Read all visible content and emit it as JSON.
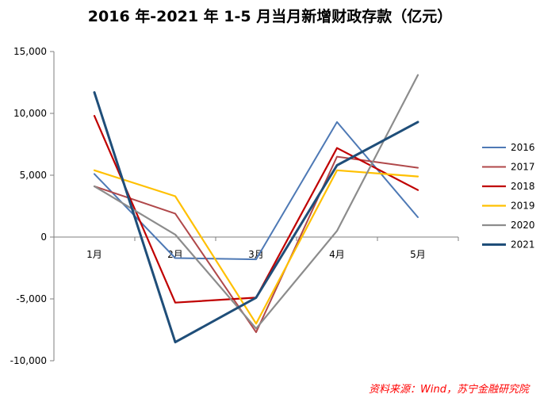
{
  "chart_data": {
    "type": "line",
    "title": "2016 年-2021 年 1-5 月当月新增财政存款（亿元）",
    "categories": [
      "1月",
      "2月",
      "3月",
      "4月",
      "5月"
    ],
    "ylim": [
      -10000,
      15000
    ],
    "yticks": [
      15000,
      10000,
      5000,
      0,
      -5000,
      -10000
    ],
    "ytick_labels": [
      "15,000",
      "10,000",
      "5,000",
      "0",
      "-5,000",
      "-10,000"
    ],
    "grid": false,
    "legend_position": "right",
    "series": [
      {
        "name": "2016",
        "color": "#4e79b5",
        "width": 2.0,
        "values": [
          5100,
          -1700,
          -1800,
          9300,
          1600
        ]
      },
      {
        "name": "2017",
        "color": "#b0484a",
        "width": 2.0,
        "values": [
          4100,
          1900,
          -7700,
          6500,
          5600
        ]
      },
      {
        "name": "2018",
        "color": "#c00000",
        "width": 2.2,
        "values": [
          9800,
          -5300,
          -4900,
          7200,
          3800
        ]
      },
      {
        "name": "2019",
        "color": "#ffc000",
        "width": 2.2,
        "values": [
          5400,
          3300,
          -7000,
          5400,
          4900
        ]
      },
      {
        "name": "2020",
        "color": "#8c8c8c",
        "width": 2.2,
        "values": [
          4100,
          200,
          -7400,
          500,
          13100
        ]
      },
      {
        "name": "2021",
        "color": "#1f4e79",
        "width": 3.0,
        "values": [
          11700,
          -8500,
          -4900,
          5800,
          9300
        ]
      }
    ]
  },
  "source": "资料来源：Wind，苏宁金融研究院"
}
